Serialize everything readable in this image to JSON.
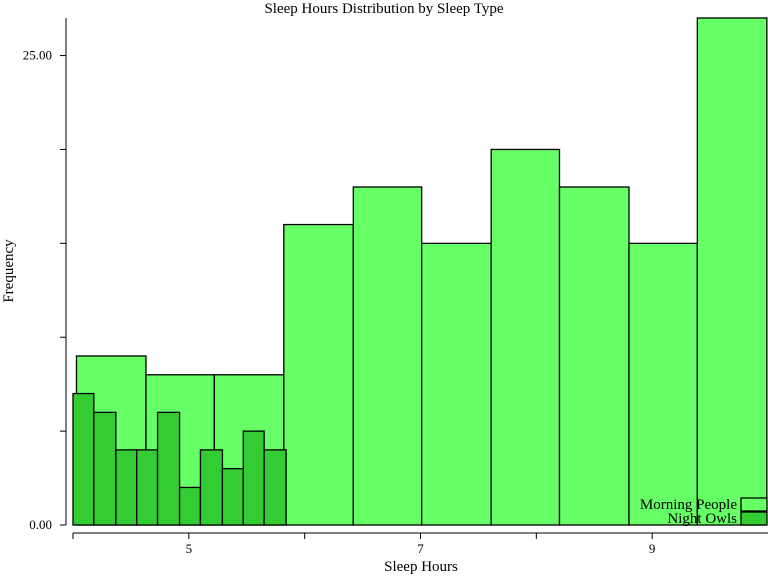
{
  "chart_data": {
    "type": "bar",
    "title": "Sleep Hours Distribution by Sleep Type",
    "xlabel": "Sleep Hours",
    "ylabel": "Frequency",
    "xlim": [
      4.0,
      10.0
    ],
    "ylim": [
      0,
      27
    ],
    "x_ticks": [
      5,
      7,
      9
    ],
    "x_minor_ticks": [
      4,
      6,
      8
    ],
    "y_ticks": [
      0,
      5,
      10,
      15,
      20,
      25
    ],
    "y_tick_labels": {
      "0": "0.00",
      "25": "25.00"
    },
    "grid": false,
    "legend_position": "bottom-right",
    "series": [
      {
        "name": "Morning People",
        "color": "#66ff66",
        "bins": [
          {
            "x0": 4.03,
            "x1": 4.63,
            "count": 9
          },
          {
            "x0": 4.63,
            "x1": 5.22,
            "count": 8
          },
          {
            "x0": 5.22,
            "x1": 5.82,
            "count": 8
          },
          {
            "x0": 5.82,
            "x1": 6.42,
            "count": 16
          },
          {
            "x0": 6.42,
            "x1": 7.01,
            "count": 18
          },
          {
            "x0": 7.01,
            "x1": 7.61,
            "count": 15
          },
          {
            "x0": 7.61,
            "x1": 8.2,
            "count": 20
          },
          {
            "x0": 8.2,
            "x1": 8.8,
            "count": 18
          },
          {
            "x0": 8.8,
            "x1": 9.39,
            "count": 15
          },
          {
            "x0": 9.39,
            "x1": 9.99,
            "count": 27
          }
        ]
      },
      {
        "name": "Night Owls",
        "color": "#33cc33",
        "bins": [
          {
            "x0": 4.0,
            "x1": 4.18,
            "count": 7
          },
          {
            "x0": 4.18,
            "x1": 4.37,
            "count": 6
          },
          {
            "x0": 4.37,
            "x1": 4.55,
            "count": 4
          },
          {
            "x0": 4.55,
            "x1": 4.73,
            "count": 4
          },
          {
            "x0": 4.73,
            "x1": 4.92,
            "count": 6
          },
          {
            "x0": 4.92,
            "x1": 5.1,
            "count": 2
          },
          {
            "x0": 5.1,
            "x1": 5.29,
            "count": 4
          },
          {
            "x0": 5.29,
            "x1": 5.47,
            "count": 3
          },
          {
            "x0": 5.47,
            "x1": 5.65,
            "count": 5
          },
          {
            "x0": 5.65,
            "x1": 5.84,
            "count": 4
          }
        ]
      }
    ]
  }
}
